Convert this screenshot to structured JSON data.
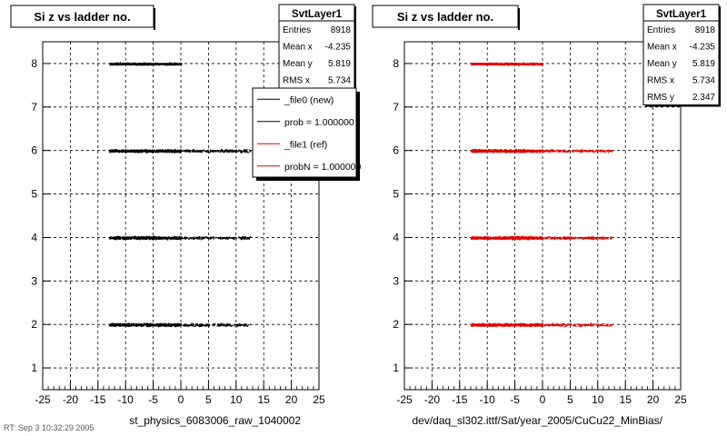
{
  "footer": {
    "note": "RT: Sep 3 10:32:29 2005"
  },
  "colors": {
    "file0": "#000000",
    "file1": "#e00000",
    "grid": "#000000",
    "frame": "#000000"
  },
  "chart_data": [
    {
      "type": "scatter",
      "title": "Si z vs ladder no.",
      "xlabel": "st_physics_6083006_raw_1040002",
      "ylabel": "",
      "xlim": [
        -25,
        25
      ],
      "ylim": [
        0.5,
        8.5
      ],
      "x_ticks": [
        "-25",
        "-20",
        "-15",
        "-10",
        "-5",
        "0",
        "5",
        "10",
        "15",
        "20",
        "25"
      ],
      "y_ticks": [
        "1",
        "2",
        "3",
        "4",
        "5",
        "6",
        "7",
        "8"
      ],
      "grid": true,
      "stats": {
        "name": "SvtLayer1",
        "rows": [
          {
            "label": "Entries",
            "value": "8918"
          },
          {
            "label": "Mean x",
            "value": "-4.235"
          },
          {
            "label": "Mean y",
            "value": "5.819"
          },
          {
            "label": "RMS x",
            "value": "5.734"
          }
        ]
      },
      "legend": {
        "placement": "top-right",
        "entries": [
          {
            "label": "_file0 (new)",
            "color": "#000000"
          },
          {
            "label": "prob = 1.000000",
            "color": "#000000"
          },
          {
            "label": "_file1 (ref)",
            "color": "#e00000"
          },
          {
            "label": "probN = 1.000000",
            "color": "#e00000"
          }
        ]
      },
      "series": [
        {
          "color": "#000000",
          "bands": [
            {
              "y": 2,
              "x_min": -13,
              "x_max": 12.5,
              "dense_max": 0
            },
            {
              "y": 4,
              "x_min": -13,
              "x_max": 12.5,
              "dense_max": 0
            },
            {
              "y": 6,
              "x_min": -13,
              "x_max": 12.5,
              "dense_max": 0
            },
            {
              "y": 8,
              "x_min": -13,
              "x_max": 0,
              "dense_max": 0
            }
          ]
        }
      ]
    },
    {
      "type": "scatter",
      "title": "Si z vs ladder no.",
      "xlabel": "dev/daq_sl302.ittf/Sat/year_2005/CuCu22_MinBias/",
      "ylabel": "",
      "xlim": [
        -25,
        25
      ],
      "ylim": [
        0.5,
        8.5
      ],
      "x_ticks": [
        "-25",
        "-20",
        "-15",
        "-10",
        "-5",
        "0",
        "5",
        "10",
        "15",
        "20",
        "25"
      ],
      "y_ticks": [
        "1",
        "2",
        "3",
        "4",
        "5",
        "6",
        "7",
        "8"
      ],
      "grid": true,
      "stats": {
        "name": "SvtLayer1",
        "rows": [
          {
            "label": "Entries",
            "value": "8918"
          },
          {
            "label": "Mean x",
            "value": "-4.235"
          },
          {
            "label": "Mean y",
            "value": "5.819"
          },
          {
            "label": "RMS x",
            "value": "5.734"
          },
          {
            "label": "RMS y",
            "value": "2.347"
          }
        ]
      },
      "series": [
        {
          "color": "#e00000",
          "bands": [
            {
              "y": 2,
              "x_min": -13,
              "x_max": 12.5,
              "dense_max": 0
            },
            {
              "y": 4,
              "x_min": -13,
              "x_max": 12.5,
              "dense_max": 0
            },
            {
              "y": 6,
              "x_min": -13,
              "x_max": 12.5,
              "dense_max": 0
            },
            {
              "y": 8,
              "x_min": -13,
              "x_max": 0,
              "dense_max": 0
            }
          ]
        }
      ]
    }
  ]
}
